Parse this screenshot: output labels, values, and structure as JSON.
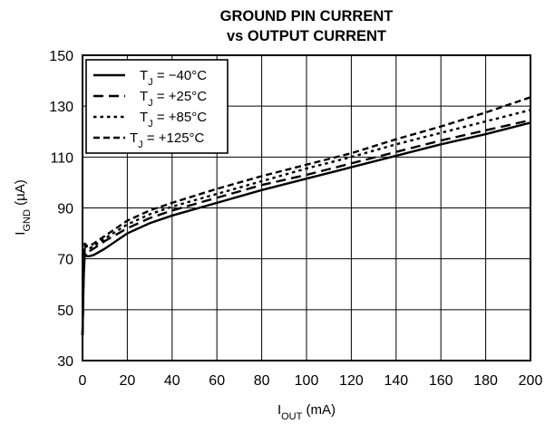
{
  "chart_data": {
    "type": "line",
    "title_line1": "GROUND PIN CURRENT",
    "title_line2": "vs OUTPUT CURRENT",
    "xlabel_main": "I",
    "xlabel_sub": "OUT",
    "xlabel_unit": " (mA)",
    "ylabel_main": "I",
    "ylabel_sub": "GND",
    "ylabel_unit": " (µA)",
    "xlim": [
      0,
      200
    ],
    "ylim": [
      30,
      150
    ],
    "x_ticks": [
      0,
      20,
      40,
      60,
      80,
      100,
      120,
      140,
      160,
      180,
      200
    ],
    "x_tick_labels": [
      "0",
      "20",
      "40",
      "60",
      "80",
      "100",
      "120",
      "140",
      "160",
      "180",
      "200"
    ],
    "y_ticks": [
      30,
      50,
      70,
      90,
      110,
      130,
      150
    ],
    "y_tick_labels": [
      "30",
      "50",
      "70",
      "90",
      "110",
      "130",
      "150"
    ],
    "grid": true,
    "legend_position": "top-left",
    "series": [
      {
        "name_main": "T",
        "name_sub": "J",
        "name_rest": " = −40°C",
        "dash": "solid",
        "x": [
          0,
          0.5,
          1,
          1.5,
          2,
          3,
          5,
          10,
          20,
          30,
          40,
          60,
          80,
          100,
          120,
          140,
          160,
          180,
          200
        ],
        "y": [
          40,
          62,
          72,
          71.5,
          71,
          71,
          71.5,
          74,
          80,
          84,
          87,
          92,
          97,
          101.5,
          106,
          110.5,
          115,
          119,
          123.5
        ]
      },
      {
        "name_main": "T",
        "name_sub": "J",
        "name_rest": " = +25°C",
        "dash": "longdash",
        "x": [
          0,
          0.5,
          1,
          1.5,
          2,
          3,
          5,
          10,
          20,
          30,
          40,
          60,
          80,
          100,
          120,
          140,
          160,
          180,
          200
        ],
        "y": [
          40,
          66,
          74,
          73.5,
          73,
          73,
          74,
          77,
          82,
          86,
          89,
          94,
          99,
          103,
          107.5,
          112,
          116.5,
          120.5,
          124.5
        ]
      },
      {
        "name_main": "T",
        "name_sub": "J",
        "name_rest": " = +85°C",
        "dash": "dotted",
        "x": [
          0,
          0.5,
          1,
          1.5,
          2,
          3,
          5,
          10,
          20,
          30,
          40,
          60,
          80,
          100,
          120,
          140,
          160,
          180,
          200
        ],
        "y": [
          40,
          67,
          75,
          74.5,
          74,
          74,
          75,
          78,
          83.5,
          87.5,
          90.5,
          95.5,
          100.5,
          105.5,
          110,
          115,
          119.5,
          124,
          128.5
        ]
      },
      {
        "name_main": "T",
        "name_sub": "J",
        "name_rest": " = +125°C",
        "dash": "dashed",
        "x": [
          0,
          0.5,
          1,
          1.5,
          2,
          3,
          5,
          10,
          20,
          30,
          40,
          60,
          80,
          100,
          120,
          140,
          160,
          180,
          200
        ],
        "y": [
          40,
          68,
          76,
          75.5,
          75,
          75,
          76,
          79,
          85,
          89,
          92,
          97.5,
          102.5,
          107,
          111.5,
          117,
          122,
          127.5,
          133.5
        ]
      }
    ]
  }
}
